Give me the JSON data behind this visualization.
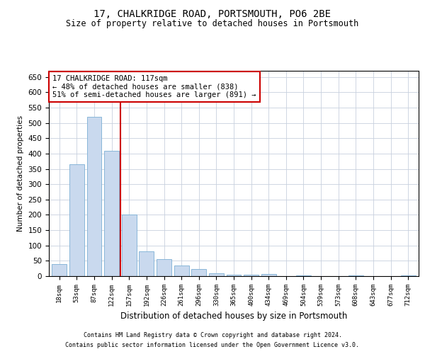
{
  "title": "17, CHALKRIDGE ROAD, PORTSMOUTH, PO6 2BE",
  "subtitle": "Size of property relative to detached houses in Portsmouth",
  "xlabel": "Distribution of detached houses by size in Portsmouth",
  "ylabel": "Number of detached properties",
  "bar_color": "#c9d9ee",
  "bar_edge_color": "#7bafd4",
  "grid_color": "#c8d0de",
  "vline_color": "#cc0000",
  "vline_position": 3.5,
  "annotation_text": "17 CHALKRIDGE ROAD: 117sqm\n← 48% of detached houses are smaller (838)\n51% of semi-detached houses are larger (891) →",
  "annotation_box_color": "#cc0000",
  "categories": [
    "18sqm",
    "53sqm",
    "87sqm",
    "122sqm",
    "157sqm",
    "192sqm",
    "226sqm",
    "261sqm",
    "296sqm",
    "330sqm",
    "365sqm",
    "400sqm",
    "434sqm",
    "469sqm",
    "504sqm",
    "539sqm",
    "573sqm",
    "608sqm",
    "643sqm",
    "677sqm",
    "712sqm"
  ],
  "values": [
    40,
    365,
    520,
    410,
    202,
    82,
    56,
    35,
    22,
    9,
    5,
    5,
    7,
    1,
    2,
    0,
    0,
    3,
    0,
    0,
    2
  ],
  "ylim": [
    0,
    670
  ],
  "yticks": [
    0,
    50,
    100,
    150,
    200,
    250,
    300,
    350,
    400,
    450,
    500,
    550,
    600,
    650
  ],
  "footer_line1": "Contains HM Land Registry data © Crown copyright and database right 2024.",
  "footer_line2": "Contains public sector information licensed under the Open Government Licence v3.0.",
  "bg_color": "#ffffff"
}
